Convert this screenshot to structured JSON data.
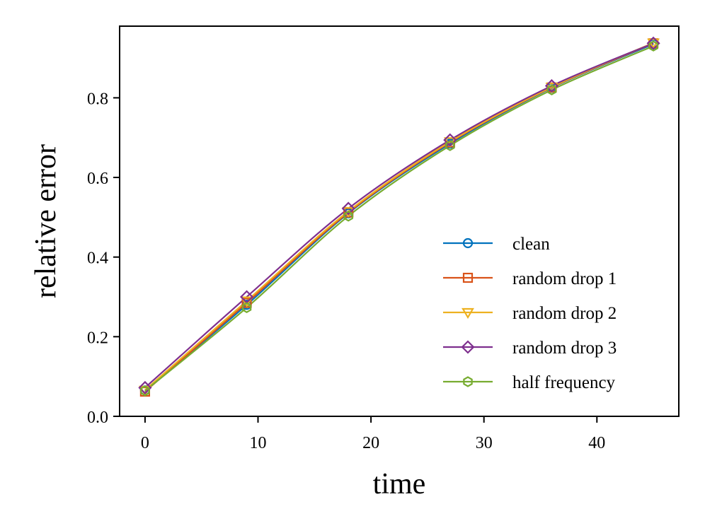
{
  "chart_data": {
    "type": "line",
    "xlabel": "time",
    "ylabel": "relative error",
    "xlim": [
      -2.25,
      47.25
    ],
    "ylim": [
      0.0,
      0.98
    ],
    "x_ticks": [
      0,
      10,
      20,
      30,
      40
    ],
    "x_tick_labels": [
      "0",
      "10",
      "20",
      "30",
      "40"
    ],
    "y_ticks": [
      0.0,
      0.2,
      0.4,
      0.6,
      0.8
    ],
    "y_tick_labels": [
      "0.0",
      "0.2",
      "0.4",
      "0.6",
      "0.8"
    ],
    "x": [
      0,
      9,
      18,
      27,
      36,
      45
    ],
    "legend_position": "lower-right",
    "grid": false,
    "series": [
      {
        "name": "clean",
        "color": "#0072BD",
        "marker": "circle",
        "values": [
          0.065,
          0.28,
          0.51,
          0.685,
          0.825,
          0.935
        ]
      },
      {
        "name": "random drop 1",
        "color": "#D95319",
        "marker": "square",
        "values": [
          0.062,
          0.285,
          0.512,
          0.688,
          0.826,
          0.937
        ]
      },
      {
        "name": "random drop 2",
        "color": "#EDB120",
        "marker": "triangle-down",
        "values": [
          0.066,
          0.29,
          0.515,
          0.69,
          0.827,
          0.938
        ]
      },
      {
        "name": "random drop 3",
        "color": "#7E2F8E",
        "marker": "diamond",
        "values": [
          0.072,
          0.3,
          0.522,
          0.694,
          0.83,
          0.937
        ]
      },
      {
        "name": "half frequency",
        "color": "#77AC30",
        "marker": "hexagon",
        "values": [
          0.064,
          0.273,
          0.503,
          0.68,
          0.82,
          0.93
        ]
      }
    ]
  }
}
